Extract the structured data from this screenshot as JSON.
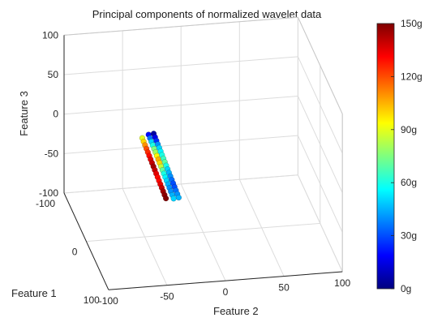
{
  "chart_data": {
    "type": "scatter3d",
    "title": "Principal components of normalized wavelet data",
    "xlabel": "Feature 1",
    "ylabel": "Feature 2",
    "zlabel": "Feature 3",
    "xlim": [
      -100,
      100
    ],
    "ylim": [
      -100,
      100
    ],
    "zlim": [
      -100,
      100
    ],
    "x_ticks": [
      "-100",
      "0",
      "100"
    ],
    "y_ticks": [
      "-100",
      "-50",
      "0",
      "50",
      "100"
    ],
    "z_ticks": [
      "-100",
      "-50",
      "0",
      "50",
      "100"
    ],
    "grid": true,
    "colormap": "jet",
    "colorbar": {
      "ticks": [
        "0g",
        "30g",
        "60g",
        "90g",
        "120g",
        "150g"
      ],
      "min": 0,
      "max": 150,
      "colors": [
        "#00007f",
        "#0000ff",
        "#007fff",
        "#00ffff",
        "#7fff7f",
        "#ffff00",
        "#ff7f00",
        "#ff0000",
        "#7f0000"
      ]
    },
    "strands": [
      {
        "x": [
          -48,
          -47,
          -46,
          -45,
          -44,
          -43,
          -42,
          -41,
          -40,
          -39,
          -38,
          -37,
          -36,
          -35,
          -34,
          -33,
          -32,
          -31
        ],
        "y": [
          -43,
          -42,
          -41,
          -40,
          -39,
          -38,
          -37,
          -36,
          -35,
          -34,
          -33,
          -32,
          -31,
          -30,
          -29,
          -28,
          -27,
          -26
        ],
        "z": [
          -5,
          -9,
          -13,
          -17,
          -21,
          -25,
          -29,
          -33,
          -37,
          -41,
          -45,
          -49,
          -53,
          -57,
          -61,
          -65,
          -69,
          -73
        ],
        "c": [
          90,
          100,
          110,
          120,
          125,
          130,
          135,
          140,
          145,
          140,
          135,
          130,
          130,
          135,
          140,
          145,
          148,
          150
        ]
      },
      {
        "x": [
          -46,
          -45,
          -44,
          -43,
          -42,
          -41,
          -40,
          -39,
          -38,
          -37,
          -36,
          -35,
          -34,
          -33,
          -32,
          -31,
          -30,
          -29,
          -28
        ],
        "y": [
          -38,
          -37,
          -36,
          -35,
          -34,
          -33,
          -32,
          -31,
          -30,
          -29,
          -28,
          -27,
          -26,
          -25,
          -24,
          -23,
          -22,
          -21,
          -20
        ],
        "z": [
          0,
          -4,
          -8,
          -12,
          -16,
          -20,
          -24,
          -28,
          -32,
          -36,
          -40,
          -44,
          -48,
          -52,
          -56,
          -60,
          -64,
          -68,
          -72
        ],
        "c": [
          20,
          35,
          50,
          60,
          75,
          80,
          95,
          105,
          100,
          85,
          70,
          60,
          55,
          50,
          45,
          40,
          40,
          45,
          50
        ]
      },
      {
        "x": [
          -44,
          -43,
          -42,
          -41,
          -40,
          -39,
          -38,
          -37,
          -36,
          -35,
          -34,
          -33,
          -32,
          -31,
          -30,
          -29,
          -28,
          -27,
          -26
        ],
        "y": [
          -34,
          -33,
          -32,
          -31,
          -30,
          -29,
          -28,
          -27,
          -26,
          -25,
          -24,
          -23,
          -22,
          -21,
          -20,
          -19,
          -18,
          -17,
          -16
        ],
        "z": [
          2,
          -2,
          -6,
          -10,
          -14,
          -18,
          -22,
          -26,
          -30,
          -34,
          -38,
          -42,
          -46,
          -50,
          -54,
          -58,
          -62,
          -66,
          -70
        ],
        "c": [
          5,
          15,
          25,
          40,
          50,
          55,
          60,
          65,
          70,
          60,
          50,
          45,
          40,
          35,
          30,
          30,
          35,
          40,
          45
        ]
      }
    ]
  }
}
